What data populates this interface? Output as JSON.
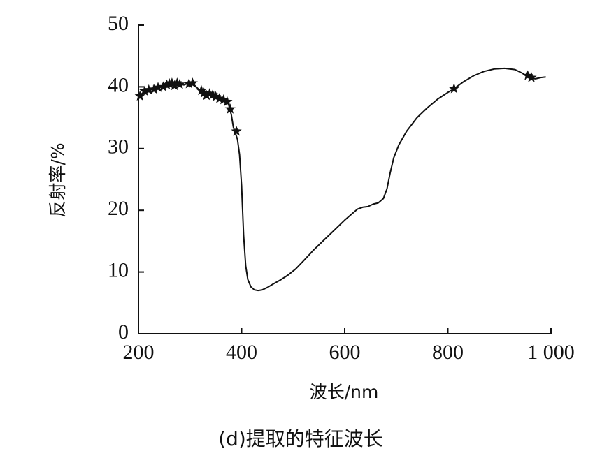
{
  "chart_data": {
    "type": "line",
    "xlabel": "波长/nm",
    "ylabel": "反射率/%",
    "caption": "(d)提取的特征波长",
    "xlim": [
      200,
      1000
    ],
    "ylim": [
      0,
      50
    ],
    "xticks": [
      200,
      400,
      600,
      800,
      1000
    ],
    "xtick_labels": [
      "200",
      "400",
      "600",
      "800",
      "1 000"
    ],
    "yticks": [
      0,
      10,
      20,
      30,
      40,
      50
    ],
    "ytick_labels": [
      "0",
      "10",
      "20",
      "30",
      "40",
      "50"
    ],
    "grid": false,
    "series": [
      {
        "points": [
          [
            200,
            38.4
          ],
          [
            208,
            39.0
          ],
          [
            215,
            39.4
          ],
          [
            225,
            39.6
          ],
          [
            235,
            39.8
          ],
          [
            245,
            40.0
          ],
          [
            255,
            40.2
          ],
          [
            262,
            40.6
          ],
          [
            270,
            40.3
          ],
          [
            278,
            40.5
          ],
          [
            288,
            40.3
          ],
          [
            298,
            40.6
          ],
          [
            305,
            40.6
          ],
          [
            312,
            40.0
          ],
          [
            318,
            39.5
          ],
          [
            325,
            39.0
          ],
          [
            332,
            38.8
          ],
          [
            340,
            38.7
          ],
          [
            348,
            38.4
          ],
          [
            355,
            38.2
          ],
          [
            362,
            37.9
          ],
          [
            368,
            37.9
          ],
          [
            373,
            37.7
          ],
          [
            377,
            36.5
          ],
          [
            380,
            35.5
          ],
          [
            384,
            33.5
          ],
          [
            388,
            32.5
          ],
          [
            392,
            31.5
          ],
          [
            396,
            29.0
          ],
          [
            400,
            24.0
          ],
          [
            404,
            16.0
          ],
          [
            408,
            11.0
          ],
          [
            412,
            8.8
          ],
          [
            418,
            7.6
          ],
          [
            425,
            7.1
          ],
          [
            432,
            7.0
          ],
          [
            440,
            7.1
          ],
          [
            450,
            7.5
          ],
          [
            460,
            8.0
          ],
          [
            475,
            8.7
          ],
          [
            490,
            9.5
          ],
          [
            505,
            10.5
          ],
          [
            520,
            11.8
          ],
          [
            540,
            13.6
          ],
          [
            560,
            15.2
          ],
          [
            580,
            16.8
          ],
          [
            600,
            18.4
          ],
          [
            615,
            19.5
          ],
          [
            625,
            20.2
          ],
          [
            635,
            20.5
          ],
          [
            645,
            20.6
          ],
          [
            655,
            21.0
          ],
          [
            665,
            21.2
          ],
          [
            675,
            21.9
          ],
          [
            682,
            23.5
          ],
          [
            688,
            26.0
          ],
          [
            695,
            28.5
          ],
          [
            705,
            30.6
          ],
          [
            720,
            32.8
          ],
          [
            740,
            35.0
          ],
          [
            760,
            36.6
          ],
          [
            780,
            38.0
          ],
          [
            800,
            39.1
          ],
          [
            812,
            39.7
          ],
          [
            830,
            40.8
          ],
          [
            850,
            41.8
          ],
          [
            870,
            42.5
          ],
          [
            890,
            42.9
          ],
          [
            910,
            43.0
          ],
          [
            930,
            42.8
          ],
          [
            945,
            42.2
          ],
          [
            955,
            41.6
          ],
          [
            962,
            41.4
          ],
          [
            970,
            41.3
          ],
          [
            980,
            41.5
          ],
          [
            990,
            41.6
          ]
        ]
      }
    ],
    "markers": {
      "shape": "star",
      "points": [
        [
          203,
          38.5
        ],
        [
          212,
          39.3
        ],
        [
          220,
          39.5
        ],
        [
          230,
          39.6
        ],
        [
          238,
          39.9
        ],
        [
          248,
          40.0
        ],
        [
          255,
          40.3
        ],
        [
          260,
          40.5
        ],
        [
          265,
          40.6
        ],
        [
          270,
          40.2
        ],
        [
          275,
          40.6
        ],
        [
          280,
          40.4
        ],
        [
          298,
          40.5
        ],
        [
          305,
          40.6
        ],
        [
          322,
          39.4
        ],
        [
          327,
          39.0
        ],
        [
          332,
          38.6
        ],
        [
          338,
          38.9
        ],
        [
          344,
          38.7
        ],
        [
          350,
          38.4
        ],
        [
          357,
          38.1
        ],
        [
          365,
          37.9
        ],
        [
          372,
          37.6
        ],
        [
          378,
          36.4
        ],
        [
          390,
          32.8
        ],
        [
          812,
          39.7
        ],
        [
          955,
          41.8
        ],
        [
          962,
          41.5
        ]
      ]
    }
  }
}
